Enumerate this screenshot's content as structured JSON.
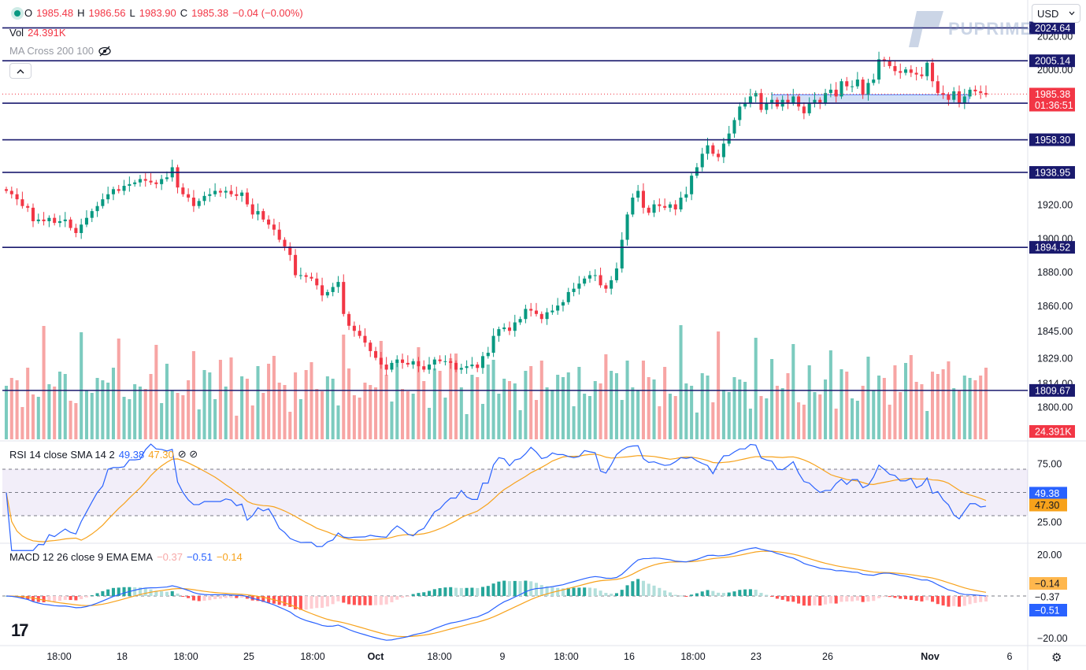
{
  "header": {
    "o_label": "O",
    "o_value": "1985.48",
    "h_label": "H",
    "h_value": "1986.56",
    "l_label": "L",
    "l_value": "1983.90",
    "c_label": "C",
    "c_value": "1985.38",
    "change": "−0.04 (−0.00%)",
    "vol_label": "Vol",
    "vol_value": "24.391K",
    "ma_label": "MA Cross 200 100",
    "rsi_label": "RSI 14 close SMA 14 2",
    "rsi_value": "49.38",
    "rsi_sma_value": "47.30",
    "macd_label": "MACD 12 26 close 9 EMA EMA",
    "macd_hist_value": "−0.37",
    "macd_value": "−0.51",
    "macd_signal_value": "−0.14",
    "currency": "USD",
    "brand": "PUPRIME"
  },
  "colors": {
    "up": "#089981",
    "down": "#f23645",
    "up_vol": "#7ccbbf",
    "down_vol": "#f7a5a4",
    "rsi": "#2962ff",
    "rsi_sma": "#f7a21b",
    "hline": "#1a1a6e",
    "zone": "#c7d8f5"
  },
  "chart_data": {
    "type": "candlestick",
    "price_axis_ticks": [
      "2020.00",
      "2000.00",
      "1920.00",
      "1900.00",
      "1880.00",
      "1860.00",
      "1845.00",
      "1829.00",
      "1814.00",
      "1800.00"
    ],
    "time_axis_ticks": [
      "18:00",
      "18",
      "18:00",
      "25",
      "18:00",
      "Oct",
      "18:00",
      "9",
      "18:00",
      "16",
      "18:00",
      "23",
      "26",
      "Nov",
      "6"
    ],
    "horizontal_levels": [
      "2024.64",
      "2005.14",
      "1980.00",
      "1958.30",
      "1938.95",
      "1894.52",
      "1809.67"
    ],
    "last_price": "1985.38",
    "countdown": "01:36:51",
    "volume_last": "24.391K",
    "zone": {
      "low": 1980.0,
      "high": 1985.0
    },
    "candle_closes": [
      1928,
      1926,
      1923,
      1919,
      1918,
      1910,
      1911,
      1910,
      1912,
      1909,
      1910,
      1911,
      1906,
      1903,
      1908,
      1912,
      1916,
      1919,
      1923,
      1926,
      1929,
      1928,
      1931,
      1932,
      1933,
      1935,
      1934,
      1933,
      1932,
      1935,
      1936,
      1942,
      1930,
      1926,
      1924,
      1919,
      1922,
      1925,
      1926,
      1928,
      1927,
      1928,
      1926,
      1925,
      1927,
      1920,
      1914,
      1916,
      1911,
      1908,
      1905,
      1899,
      1895,
      1890,
      1878,
      1878,
      1877,
      1876,
      1872,
      1866,
      1868,
      1871,
      1874,
      1855,
      1848,
      1845,
      1842,
      1838,
      1833,
      1829,
      1825,
      1822,
      1826,
      1828,
      1826,
      1825,
      1827,
      1824,
      1822,
      1825,
      1828,
      1827,
      1827,
      1826,
      1822,
      1823,
      1824,
      1825,
      1823,
      1830,
      1832,
      1842,
      1846,
      1847,
      1845,
      1850,
      1852,
      1858,
      1857,
      1855,
      1852,
      1856,
      1857,
      1860,
      1862,
      1868,
      1870,
      1873,
      1876,
      1878,
      1878,
      1872,
      1870,
      1875,
      1882,
      1899,
      1914,
      1924,
      1928,
      1918,
      1915,
      1920,
      1919,
      1918,
      1920,
      1917,
      1924,
      1926,
      1937,
      1942,
      1950,
      1955,
      1950,
      1948,
      1956,
      1962,
      1970,
      1978,
      1980,
      1984,
      1986,
      1976,
      1980,
      1982,
      1978,
      1982,
      1980,
      1984,
      1978,
      1974,
      1980,
      1982,
      1980,
      1986,
      1988,
      1984,
      1993,
      1990,
      1990,
      1994,
      1985,
      1992,
      1994,
      2006,
      2005,
      2002,
      1999,
      1998,
      2000,
      1998,
      1997,
      1996,
      2004,
      1993,
      1986,
      1985,
      1982,
      1987,
      1980,
      1984,
      1988,
      1987,
      1986,
      1985
    ],
    "rsi": {
      "overbought": 70,
      "oversold": 30,
      "mid": 50,
      "last": 49.38,
      "sma_last": 47.3,
      "axis_ticks": [
        "75.00",
        "25.00"
      ]
    },
    "macd": {
      "hist_last": -0.37,
      "macd_last": -0.51,
      "signal_last": -0.14,
      "axis_ticks": [
        "20.00",
        "−20.00"
      ]
    }
  }
}
